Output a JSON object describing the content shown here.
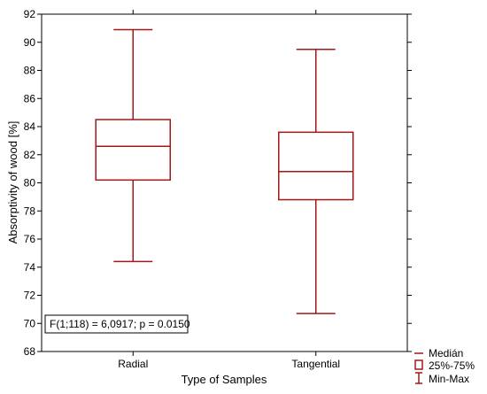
{
  "chart_data": {
    "type": "boxplot",
    "xlabel": "Type of Samples",
    "ylabel": "Absorptivity of wood [%]",
    "ylim": [
      68,
      92
    ],
    "yticks": [
      68,
      70,
      72,
      74,
      76,
      78,
      80,
      82,
      84,
      86,
      88,
      90,
      92
    ],
    "categories": [
      "Radial",
      "Tangential"
    ],
    "boxes": [
      {
        "category": "Radial",
        "min": 74.4,
        "q1": 80.2,
        "median": 82.6,
        "q3": 84.5,
        "max": 90.9
      },
      {
        "category": "Tangential",
        "min": 70.7,
        "q1": 78.8,
        "median": 80.8,
        "q3": 83.6,
        "max": 89.5
      }
    ],
    "annotation": "F(1;118) = 6,0917; p = 0.0150",
    "legend": {
      "position": "bottom-right outside",
      "median": "Medián",
      "box": "25%-75%",
      "whisker": "Min-Max"
    },
    "color": "#a01818",
    "grid": false
  }
}
